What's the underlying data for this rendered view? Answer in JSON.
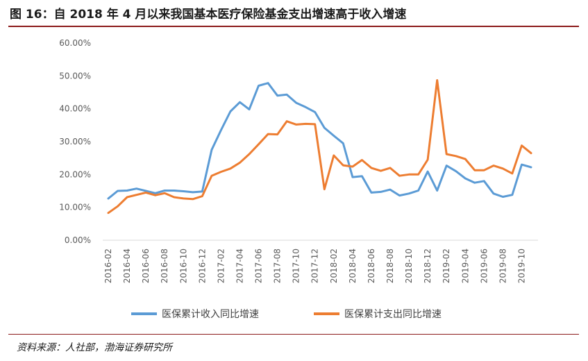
{
  "header": {
    "title": "图 16：自 2018 年 4 月以来我国基本医疗保险基金支出增速高于收入增速"
  },
  "footer": {
    "source": "资料来源：人社部，渤海证券研究所"
  },
  "colors": {
    "income": "#5b9bd5",
    "expense": "#ed7d31",
    "rule": "#8b1a1a",
    "axis": "#d9d9d9"
  },
  "chart_data": {
    "type": "line",
    "title": "",
    "xlabel": "",
    "ylabel": "",
    "ylim": [
      0,
      0.6
    ],
    "yticks": [
      "0.00%",
      "10.00%",
      "20.00%",
      "30.00%",
      "40.00%",
      "50.00%",
      "60.00%"
    ],
    "grid": false,
    "legend": "bottom",
    "x": [
      "2016-02",
      "2016-03",
      "2016-04",
      "2016-05",
      "2016-06",
      "2016-07",
      "2016-08",
      "2016-09",
      "2016-10",
      "2016-11",
      "2016-12",
      "2017-01",
      "2017-02",
      "2017-03",
      "2017-04",
      "2017-05",
      "2017-06",
      "2017-07",
      "2017-08",
      "2017-09",
      "2017-10",
      "2017-11",
      "2017-12",
      "2018-01",
      "2018-02",
      "2018-03",
      "2018-04",
      "2018-05",
      "2018-06",
      "2018-07",
      "2018-08",
      "2018-09",
      "2018-10",
      "2018-11",
      "2018-12",
      "2019-01",
      "2019-02",
      "2019-03",
      "2019-04",
      "2019-05",
      "2019-06",
      "2019-07",
      "2019-08",
      "2019-09",
      "2019-10",
      "2019-11"
    ],
    "xtick_labels": [
      "2016-02",
      "2016-04",
      "2016-06",
      "2016-08",
      "2016-10",
      "2016-12",
      "2017-02",
      "2017-04",
      "2017-06",
      "2017-08",
      "2017-10",
      "2017-12",
      "2018-02",
      "2018-04",
      "2018-06",
      "2018-08",
      "2018-10",
      "2018-12",
      "2019-02",
      "2019-04",
      "2019-06",
      "2019-08",
      "2019-10"
    ],
    "series": [
      {
        "name": "医保累计收入同比增速",
        "values": [
          0.127,
          0.15,
          0.151,
          0.157,
          0.15,
          0.143,
          0.151,
          0.151,
          0.149,
          0.146,
          0.148,
          0.275,
          0.335,
          0.392,
          0.42,
          0.398,
          0.47,
          0.478,
          0.44,
          0.443,
          0.418,
          0.405,
          0.39,
          0.342,
          0.318,
          0.295,
          0.192,
          0.195,
          0.145,
          0.147,
          0.154,
          0.136,
          0.142,
          0.151,
          0.209,
          0.151,
          0.227,
          0.21,
          0.188,
          0.175,
          0.18,
          0.142,
          0.132,
          0.138,
          0.23,
          0.222
        ]
      },
      {
        "name": "医保累计支出同比增速",
        "values": [
          0.083,
          0.103,
          0.131,
          0.138,
          0.145,
          0.137,
          0.143,
          0.131,
          0.127,
          0.125,
          0.134,
          0.196,
          0.208,
          0.218,
          0.236,
          0.262,
          0.292,
          0.323,
          0.322,
          0.362,
          0.352,
          0.354,
          0.353,
          0.155,
          0.258,
          0.228,
          0.224,
          0.244,
          0.22,
          0.211,
          0.22,
          0.196,
          0.2,
          0.2,
          0.245,
          0.487,
          0.262,
          0.256,
          0.247,
          0.213,
          0.213,
          0.227,
          0.218,
          0.203,
          0.288,
          0.265
        ]
      }
    ]
  }
}
